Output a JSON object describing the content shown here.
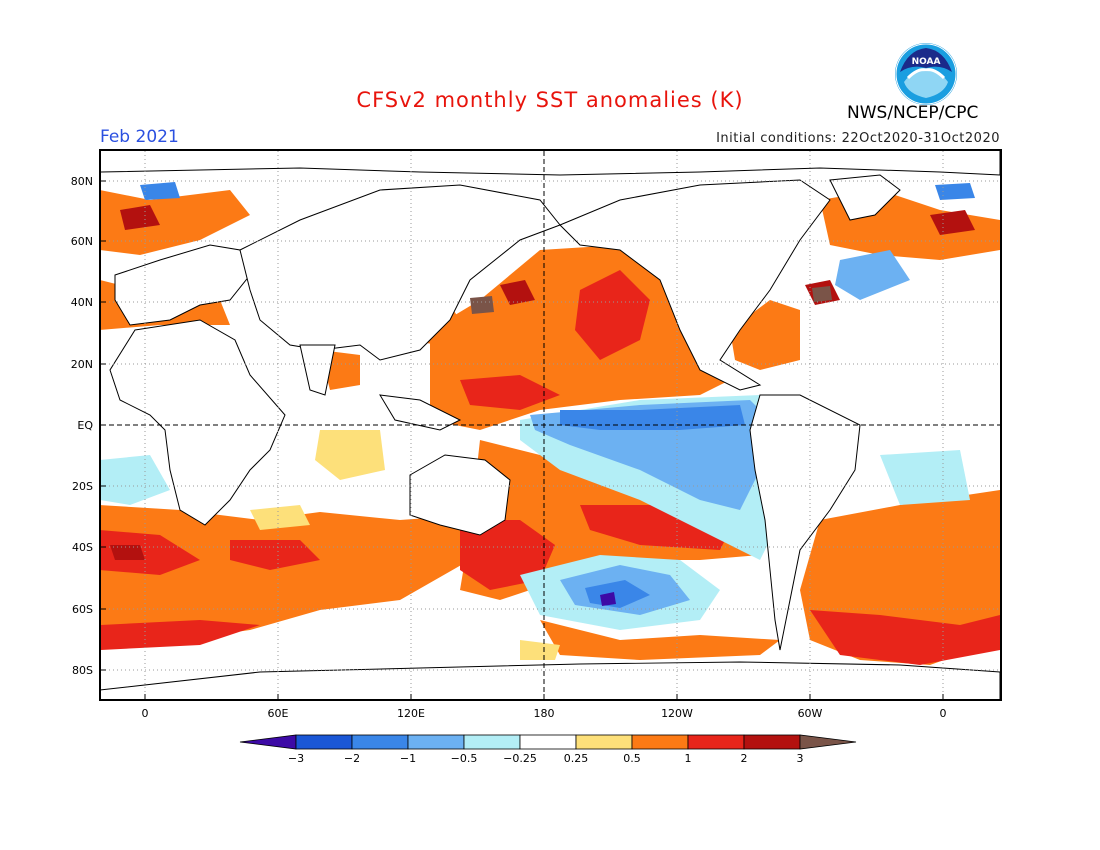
{
  "header": {
    "title": "CFSv2 monthly SST anomalies (K)",
    "month": "Feb 2021",
    "initial_conditions": "Initial conditions: 22Oct2020-31Oct2020",
    "agency": "NWS/NCEP/CPC",
    "logo_text": "NOAA"
  },
  "colors": {
    "title": "#e8140c",
    "month": "#2b50e0",
    "frame": "#000000"
  },
  "axes": {
    "lat_labels": [
      "80N",
      "60N",
      "40N",
      "20N",
      "EQ",
      "20S",
      "40S",
      "60S",
      "80S"
    ],
    "lon_labels": [
      "0",
      "60E",
      "120E",
      "180",
      "120W",
      "60W",
      "0"
    ]
  },
  "legend": {
    "labels": [
      "-3",
      "-2",
      "-1",
      "-0.5",
      "-0.25",
      "0.25",
      "0.5",
      "1",
      "2",
      "3"
    ],
    "colors": [
      "#3d0aa6",
      "#1a57d6",
      "#3a86e8",
      "#6cb1f2",
      "#b3eef6",
      "#ffffff",
      "#fde07a",
      "#fc7a15",
      "#e8251a",
      "#b3110f",
      "#7a5448"
    ]
  }
}
